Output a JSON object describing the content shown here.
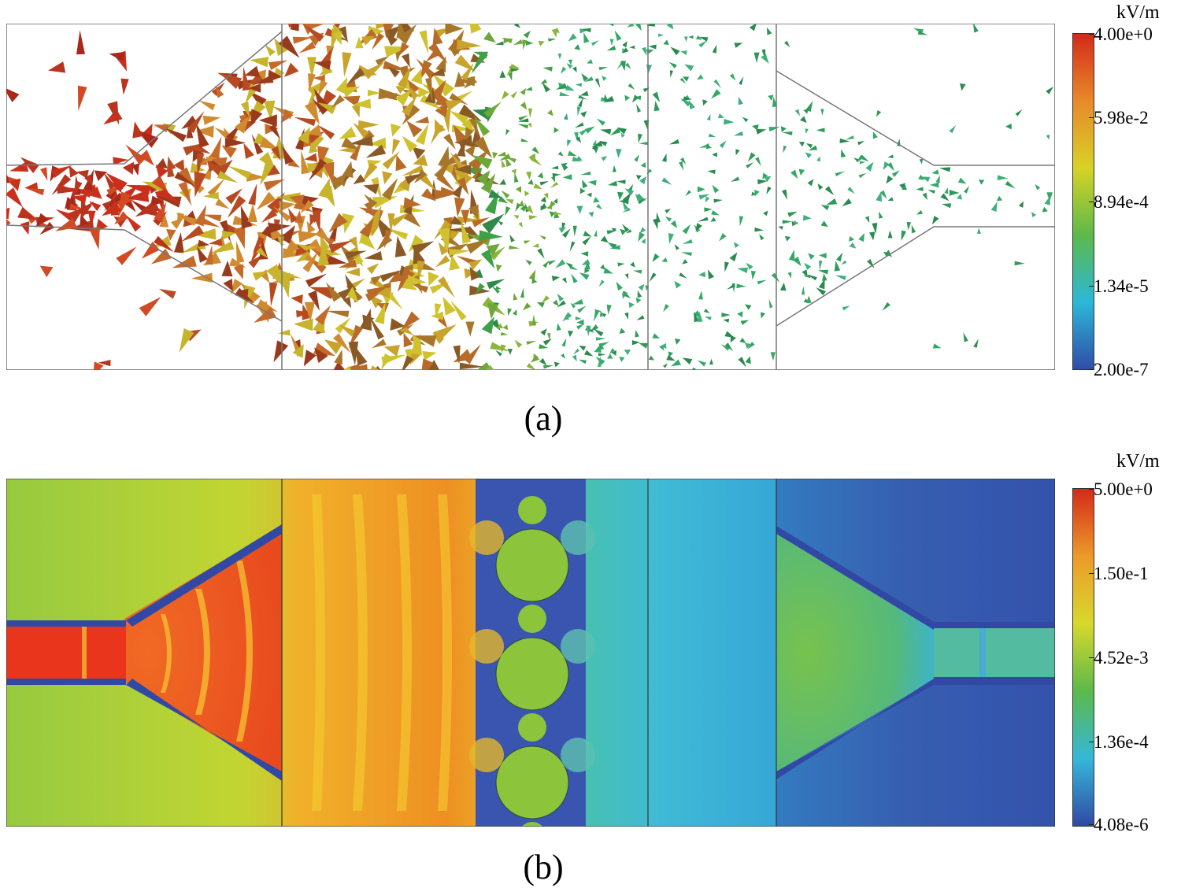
{
  "panels": [
    {
      "caption": "(a)",
      "unit": "kV/m",
      "scale_ticks": [
        "4.00e+0",
        "5.98e-2",
        "8.94e-4",
        "1.34e-5",
        "2.00e-7"
      ],
      "colors": [
        "#d42a1a",
        "#e8892a",
        "#d7d226",
        "#5cb94a",
        "#2cb8d8",
        "#2f4da6"
      ]
    },
    {
      "caption": "(b)",
      "unit": "kV/m",
      "scale_ticks": [
        "5.00e+0",
        "1.50e-1",
        "4.52e-3",
        "1.36e-4",
        "4.08e-6"
      ],
      "colors": [
        "#d42a1a",
        "#ec9a2a",
        "#d8d82c",
        "#5cb94a",
        "#35b8d8",
        "#3149a4"
      ]
    }
  ]
}
